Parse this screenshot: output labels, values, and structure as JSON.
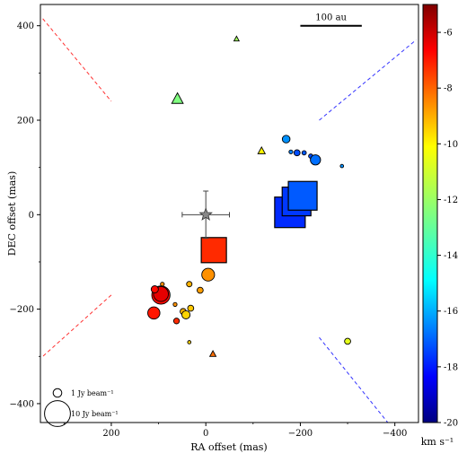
{
  "chart_data": {
    "type": "scatter",
    "xlabel": "RA offset (mas)",
    "ylabel": "DEC offset (mas)",
    "xlim": [
      350,
      -450
    ],
    "ylim": [
      -440,
      445
    ],
    "x_ticks": [
      200,
      0,
      -200,
      -400
    ],
    "x_tick_labels": [
      "200",
      "0",
      "−200",
      "−400"
    ],
    "y_ticks": [
      400,
      200,
      0,
      -200,
      -400
    ],
    "y_tick_labels": [
      "400",
      "200",
      "0",
      "−200",
      "−400"
    ],
    "grid": false,
    "colorbar": {
      "label": "km s⁻¹",
      "range": [
        -20,
        -5
      ],
      "colormap": "jet",
      "ticks": [
        -6,
        -8,
        -10,
        -12,
        -14,
        -16,
        -18,
        -20
      ],
      "tick_labels": [
        "-6",
        "-8",
        "-10",
        "-12",
        "-14",
        "-16",
        "-18",
        "-20"
      ]
    },
    "scalebar": {
      "label": "100 au",
      "x_from": -200,
      "x_to": -330,
      "y": 400
    },
    "legend": {
      "placement": "lower-left",
      "entries": [
        {
          "label": "1 Jy beam⁻¹",
          "flux": 1
        },
        {
          "label": "10 Jy beam⁻¹",
          "flux": 10
        }
      ]
    },
    "center_star": {
      "x": 0,
      "y": 0,
      "xerr": 50,
      "yerr": 50
    },
    "outflow_lines": [
      {
        "color": "#ff3333",
        "x1": 345,
        "y1": 415,
        "x2": 200,
        "y2": 240
      },
      {
        "color": "#ff3333",
        "x1": 200,
        "y1": -170,
        "x2": 345,
        "y2": -300
      },
      {
        "color": "#3333ff",
        "x1": -240,
        "y1": 200,
        "x2": -445,
        "y2": 370
      },
      {
        "color": "#3333ff",
        "x1": -240,
        "y1": -260,
        "x2": -385,
        "y2": -440
      }
    ],
    "circles": [
      {
        "x": 95,
        "y": -170,
        "flux": 4.5,
        "v": -7.0
      },
      {
        "x": 95,
        "y": -168,
        "flux": 3.0,
        "v": -6.5
      },
      {
        "x": 108,
        "y": -158,
        "flux": 0.7,
        "v": -7.0
      },
      {
        "x": 92,
        "y": -147,
        "flux": 0.2,
        "v": -9.0
      },
      {
        "x": 110,
        "y": -208,
        "flux": 2.0,
        "v": -7.2
      },
      {
        "x": 65,
        "y": -190,
        "flux": 0.2,
        "v": -9.0
      },
      {
        "x": 62,
        "y": -225,
        "flux": 0.45,
        "v": -7.5
      },
      {
        "x": 48,
        "y": -205,
        "flux": 0.5,
        "v": -9.5
      },
      {
        "x": 42,
        "y": -212,
        "flux": 0.9,
        "v": -10.0
      },
      {
        "x": 32,
        "y": -198,
        "flux": 0.5,
        "v": -9.8
      },
      {
        "x": 35,
        "y": -147,
        "flux": 0.4,
        "v": -9.5
      },
      {
        "x": 12,
        "y": -160,
        "flux": 0.5,
        "v": -9.2
      },
      {
        "x": -5,
        "y": -127,
        "flux": 2.2,
        "v": -9.0
      },
      {
        "x": 35,
        "y": -270,
        "flux": 0.15,
        "v": -10.0
      },
      {
        "x": -170,
        "y": 160,
        "flux": 0.8,
        "v": -16.0
      },
      {
        "x": -180,
        "y": 133,
        "flux": 0.2,
        "v": -16.2
      },
      {
        "x": -193,
        "y": 131,
        "flux": 0.5,
        "v": -17.0
      },
      {
        "x": -208,
        "y": 131,
        "flux": 0.25,
        "v": -16.8
      },
      {
        "x": -222,
        "y": 124,
        "flux": 0.25,
        "v": -17.0
      },
      {
        "x": -232,
        "y": 116,
        "flux": 1.4,
        "v": -16.5
      },
      {
        "x": -288,
        "y": 103,
        "flux": 0.15,
        "v": -16.0
      },
      {
        "x": -300,
        "y": -268,
        "flux": 0.5,
        "v": -11.0
      }
    ],
    "squares": [
      {
        "x": -17,
        "y": -75,
        "size": 28,
        "v": -7.5
      },
      {
        "x": -178,
        "y": 5,
        "size": 34,
        "v": -17.5
      },
      {
        "x": -192,
        "y": 28,
        "size": 32,
        "v": -17.3
      },
      {
        "x": -205,
        "y": 40,
        "size": 32,
        "v": -16.8
      }
    ],
    "triangles": [
      {
        "x": 60,
        "y": 245,
        "size": 11,
        "v": -12.5
      },
      {
        "x": -65,
        "y": 372,
        "size": 5,
        "v": -12.0
      },
      {
        "x": -118,
        "y": 135,
        "size": 7,
        "v": -10.5
      },
      {
        "x": -15,
        "y": -295,
        "size": 6,
        "v": -8.5
      }
    ]
  }
}
